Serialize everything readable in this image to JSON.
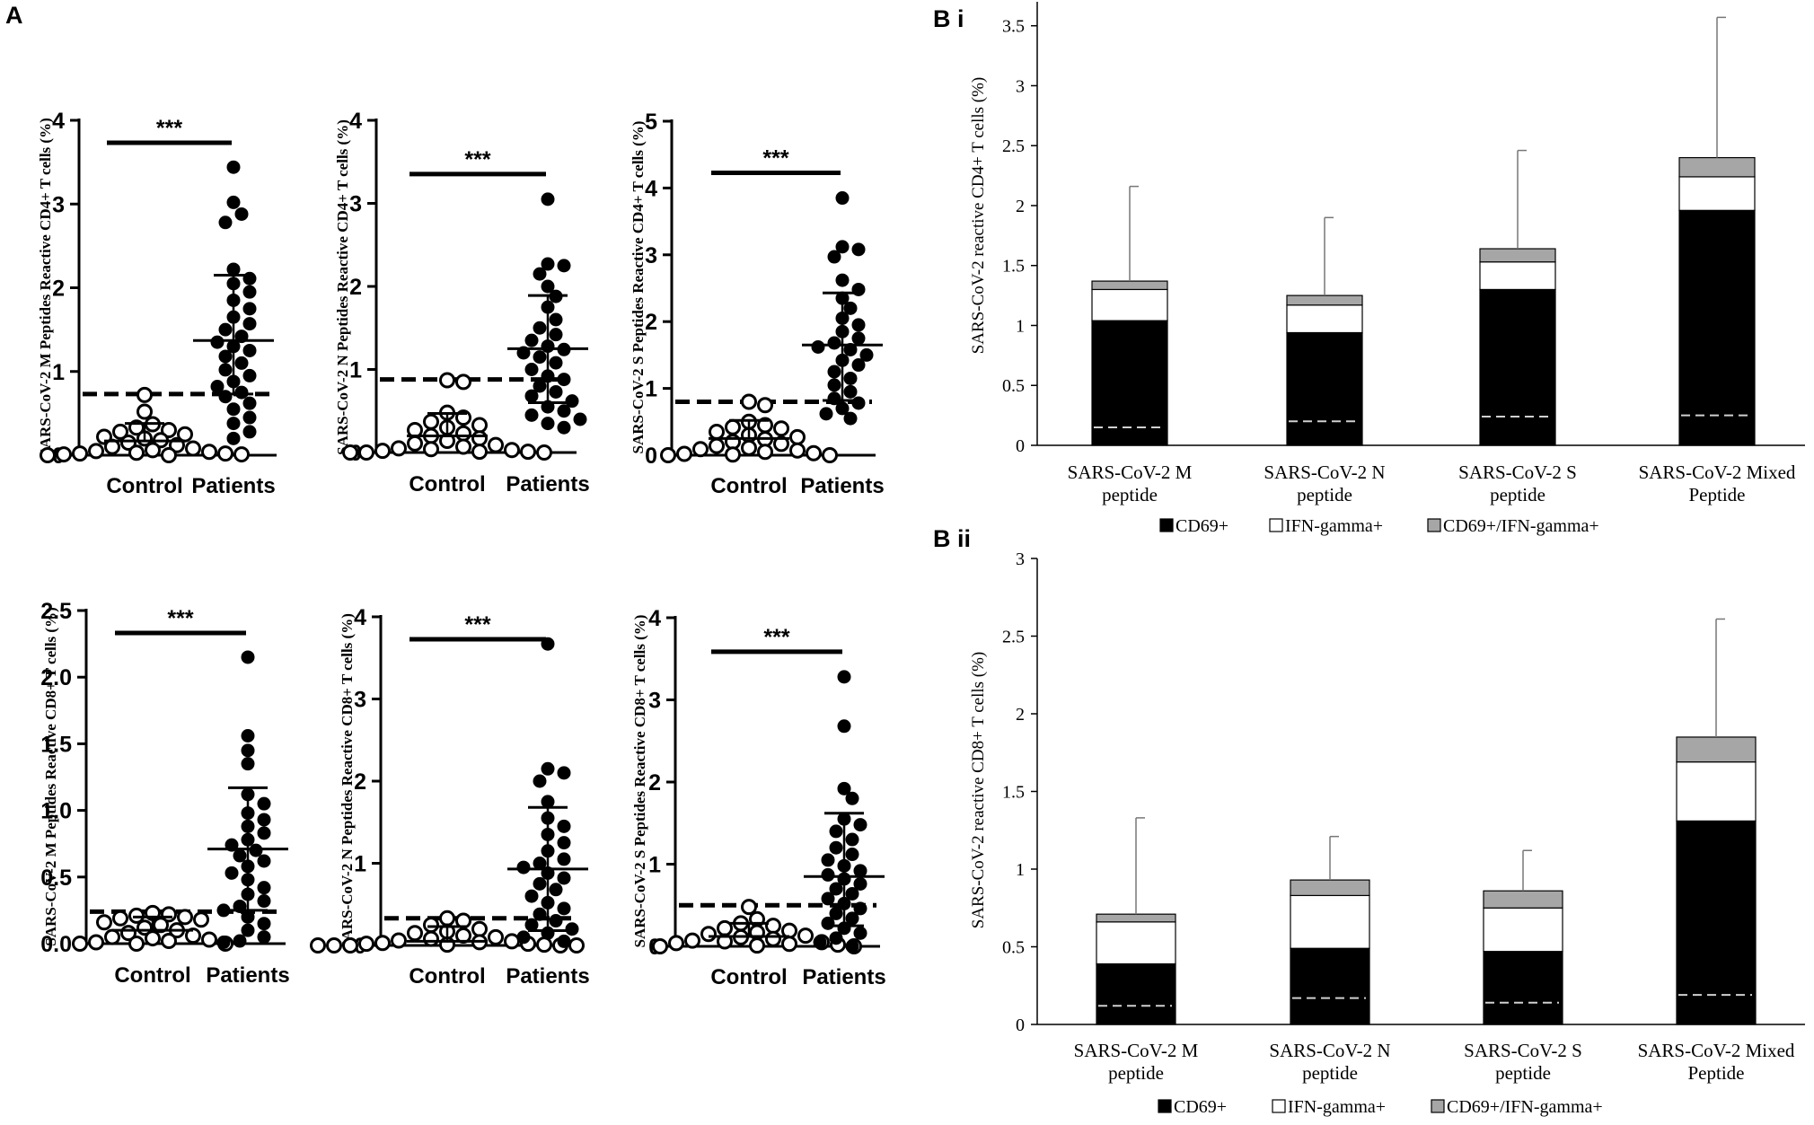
{
  "panel_labels": {
    "a": "A",
    "bi": "B i",
    "bii": "B ii"
  },
  "significance": "***",
  "chart_data": [
    {
      "id": "A1",
      "type": "scatter",
      "ylabel": "SARS-CoV-2 M Peptides Reactive CD4+ T cells (%)",
      "categories": [
        "Control",
        "Patients"
      ],
      "ylim": [
        0,
        4
      ],
      "yticks": [
        0,
        1,
        2,
        3,
        4
      ],
      "ytick_labels": [
        "0",
        "1",
        "2",
        "3",
        "4"
      ],
      "cutoff": 0.73,
      "significance": "***",
      "control": {
        "mean": 0.17,
        "sd_upper": 0.38,
        "values": [
          0.72,
          0.52,
          0.37,
          0.33,
          0.3,
          0.28,
          0.25,
          0.22,
          0.2,
          0.18,
          0.15,
          0.12,
          0.1,
          0.08,
          0.06,
          0.05,
          0.04,
          0.03,
          0.02,
          0.02,
          0.01,
          0.01,
          0.0,
          0.0
        ]
      },
      "patients": {
        "mean": 1.37,
        "sd_upper": 2.15,
        "sd_lower": 0.73,
        "values": [
          3.44,
          3.02,
          2.88,
          2.78,
          2.22,
          2.11,
          2.05,
          1.95,
          1.85,
          1.75,
          1.65,
          1.57,
          1.5,
          1.42,
          1.35,
          1.3,
          1.25,
          1.18,
          1.1,
          1.02,
          0.95,
          0.88,
          0.82,
          0.75,
          0.7,
          0.62,
          0.55,
          0.45,
          0.38,
          0.28,
          0.2
        ]
      }
    },
    {
      "id": "A2",
      "type": "scatter",
      "ylabel": "SARS-CoV-2 N Peptides Reactive CD4+ T cells (%)",
      "categories": [
        "Control",
        "Patients"
      ],
      "ylim": [
        0,
        4
      ],
      "yticks": [
        0,
        1,
        2,
        3,
        4
      ],
      "ytick_labels": [
        "0",
        "1",
        "2",
        "3",
        "4"
      ],
      "cutoff": 0.88,
      "significance": "***",
      "control": {
        "mean": 0.2,
        "sd_upper": 0.47,
        "values": [
          0.87,
          0.85,
          0.48,
          0.42,
          0.37,
          0.33,
          0.3,
          0.27,
          0.23,
          0.2,
          0.17,
          0.14,
          0.11,
          0.09,
          0.07,
          0.05,
          0.04,
          0.03,
          0.02,
          0.01,
          0.01,
          0.0,
          0.0,
          0.0
        ]
      },
      "patients": {
        "mean": 1.25,
        "sd_upper": 1.89,
        "sd_lower": 0.6,
        "values": [
          3.05,
          2.27,
          2.25,
          2.15,
          2.0,
          1.88,
          1.75,
          1.6,
          1.5,
          1.42,
          1.35,
          1.28,
          1.24,
          1.2,
          1.15,
          1.08,
          1.0,
          0.92,
          0.88,
          0.8,
          0.73,
          0.68,
          0.62,
          0.55,
          0.5,
          0.45,
          0.4,
          0.35,
          0.3
        ]
      }
    },
    {
      "id": "A3",
      "type": "scatter",
      "ylabel": "SARS-CoV-2 S Peptides Reactive CD4+ T cells (%)",
      "categories": [
        "Control",
        "Patients"
      ],
      "ylim": [
        0,
        5
      ],
      "yticks": [
        0,
        1,
        2,
        3,
        4,
        5
      ],
      "ytick_labels": [
        "0",
        "1",
        "2",
        "3",
        "4",
        "5"
      ],
      "cutoff": 0.8,
      "significance": "***",
      "control": {
        "mean": 0.25,
        "sd_upper": 0.52,
        "values": [
          0.8,
          0.75,
          0.5,
          0.45,
          0.42,
          0.4,
          0.35,
          0.3,
          0.27,
          0.24,
          0.2,
          0.17,
          0.14,
          0.11,
          0.09,
          0.07,
          0.05,
          0.03,
          0.02,
          0.01,
          0.0,
          0.0
        ]
      },
      "patients": {
        "mean": 1.65,
        "sd_upper": 2.43,
        "sd_lower": 0.82,
        "values": [
          3.85,
          3.12,
          3.08,
          2.97,
          2.62,
          2.48,
          2.35,
          2.2,
          2.05,
          1.95,
          1.85,
          1.75,
          1.68,
          1.62,
          1.58,
          1.5,
          1.42,
          1.35,
          1.25,
          1.15,
          1.05,
          0.95,
          0.85,
          0.78,
          0.7,
          0.62,
          0.55
        ]
      }
    },
    {
      "id": "A4",
      "type": "scatter",
      "ylabel": "SARS-CoV-2 M Peptides Reactive CD8+ T cells (%)",
      "categories": [
        "Control",
        "Patients"
      ],
      "ylim": [
        0,
        2.5
      ],
      "yticks": [
        0,
        0.5,
        1.0,
        1.5,
        2.0,
        2.5
      ],
      "ytick_labels": [
        "0.0",
        "0.5",
        "1.0",
        "1.5",
        "2.0",
        "2.5"
      ],
      "cutoff": 0.24,
      "significance": "***",
      "control": {
        "mean": 0.1,
        "sd_upper": 0.2,
        "values": [
          0.23,
          0.22,
          0.21,
          0.2,
          0.19,
          0.18,
          0.16,
          0.14,
          0.12,
          0.1,
          0.08,
          0.06,
          0.05,
          0.04,
          0.03,
          0.02,
          0.01,
          0.0,
          0.0,
          0.0
        ]
      },
      "patients": {
        "mean": 0.71,
        "sd_upper": 1.17,
        "sd_lower": 0.25,
        "values": [
          2.15,
          1.56,
          1.45,
          1.35,
          1.12,
          1.05,
          0.98,
          0.93,
          0.88,
          0.83,
          0.78,
          0.74,
          0.7,
          0.66,
          0.62,
          0.58,
          0.53,
          0.48,
          0.42,
          0.37,
          0.32,
          0.28,
          0.25,
          0.2,
          0.15,
          0.1,
          0.05,
          0.02,
          0.01
        ]
      }
    },
    {
      "id": "A5",
      "type": "scatter",
      "ylabel": "SARS-CoV-2 N Peptides Reactive CD8+ T cells (%)",
      "categories": [
        "Control",
        "Patients"
      ],
      "ylim": [
        0,
        4
      ],
      "yticks": [
        0,
        1,
        2,
        3,
        4
      ],
      "ytick_labels": [
        "0",
        "1",
        "2",
        "3",
        "4"
      ],
      "cutoff": 0.33,
      "significance": "***",
      "control": {
        "mean": 0.05,
        "sd_upper": 0.23,
        "values": [
          0.33,
          0.3,
          0.25,
          0.2,
          0.17,
          0.15,
          0.12,
          0.1,
          0.08,
          0.06,
          0.05,
          0.04,
          0.03,
          0.02,
          0.02,
          0.01,
          0.01,
          0.0,
          0.0,
          0.0,
          0.0,
          0.0
        ]
      },
      "patients": {
        "mean": 0.93,
        "sd_upper": 1.68,
        "sd_lower": 0.18,
        "values": [
          3.67,
          2.15,
          2.1,
          2.0,
          1.75,
          1.55,
          1.45,
          1.35,
          1.25,
          1.15,
          1.05,
          1.0,
          0.95,
          0.88,
          0.82,
          0.75,
          0.68,
          0.6,
          0.52,
          0.45,
          0.38,
          0.3,
          0.25,
          0.2,
          0.15,
          0.1,
          0.05
        ]
      }
    },
    {
      "id": "A6",
      "type": "scatter",
      "ylabel": "SARS-CoV-2 S Peptides Reactive CD8+ T cells (%)",
      "categories": [
        "Control",
        "Patients"
      ],
      "ylim": [
        0,
        4
      ],
      "yticks": [
        0,
        1,
        2,
        3,
        4
      ],
      "ytick_labels": [
        "0",
        "1",
        "2",
        "3",
        "4"
      ],
      "cutoff": 0.5,
      "significance": "***",
      "control": {
        "mean": 0.12,
        "sd_upper": 0.28,
        "values": [
          0.48,
          0.33,
          0.28,
          0.25,
          0.22,
          0.19,
          0.17,
          0.15,
          0.13,
          0.11,
          0.09,
          0.07,
          0.06,
          0.05,
          0.04,
          0.03,
          0.02,
          0.01,
          0.0,
          0.0
        ]
      },
      "patients": {
        "mean": 0.85,
        "sd_upper": 1.62,
        "sd_lower": 0.25,
        "values": [
          3.28,
          2.68,
          1.92,
          1.8,
          1.55,
          1.48,
          1.4,
          1.3,
          1.2,
          1.12,
          1.05,
          0.98,
          0.92,
          0.87,
          0.82,
          0.76,
          0.7,
          0.64,
          0.58,
          0.52,
          0.46,
          0.4,
          0.34,
          0.28,
          0.22,
          0.16,
          0.1,
          0.05,
          0.0
        ]
      }
    },
    {
      "id": "Bi",
      "type": "bar",
      "stacked": true,
      "ylabel": "SARS-CoV-2 reactive CD4+ T cells (%)",
      "categories": [
        [
          "SARS-CoV-2 M",
          "peptide"
        ],
        [
          "SARS-CoV-2 N",
          "peptide"
        ],
        [
          "SARS-CoV-2 S",
          "peptide"
        ],
        [
          "SARS-CoV-2 Mixed",
          "Peptide"
        ]
      ],
      "ylim": [
        0,
        3.7
      ],
      "yticks": [
        0,
        0.5,
        1,
        1.5,
        2,
        2.5,
        3,
        3.5
      ],
      "ytick_labels": [
        "0",
        "0.5",
        "1",
        "1.5",
        "2",
        "2.5",
        "3",
        "3.5"
      ],
      "series": [
        {
          "name": "CD69+",
          "color": "#000000",
          "values": [
            1.04,
            0.94,
            1.3,
            1.96
          ]
        },
        {
          "name": "IFN-gamma+",
          "color": "#ffffff",
          "values": [
            0.26,
            0.23,
            0.23,
            0.28
          ]
        },
        {
          "name": "CD69+/IFN-gamma+",
          "color": "#a6a6a6",
          "values": [
            0.07,
            0.08,
            0.11,
            0.16
          ]
        }
      ],
      "error_top": [
        2.16,
        1.9,
        2.46,
        3.57
      ],
      "cutoff_lines": [
        0.15,
        0.2,
        0.24,
        0.25
      ]
    },
    {
      "id": "Bii",
      "type": "bar",
      "stacked": true,
      "ylabel": "SARS-CoV-2 reactive CD8+ T cells (%)",
      "categories": [
        [
          "SARS-CoV-2 M",
          "peptide"
        ],
        [
          "SARS-CoV-2 N",
          "peptide"
        ],
        [
          "SARS-CoV-2 S",
          "peptide"
        ],
        [
          "SARS-CoV-2 Mixed",
          "Peptide"
        ]
      ],
      "ylim": [
        0,
        3
      ],
      "yticks": [
        0,
        0.5,
        1,
        1.5,
        2,
        2.5,
        3
      ],
      "ytick_labels": [
        "0",
        "0.5",
        "1",
        "1.5",
        "2",
        "2.5",
        "3"
      ],
      "series": [
        {
          "name": "CD69+",
          "color": "#000000",
          "values": [
            0.39,
            0.49,
            0.47,
            1.31
          ]
        },
        {
          "name": "IFN-gamma+",
          "color": "#ffffff",
          "values": [
            0.27,
            0.34,
            0.28,
            0.38
          ]
        },
        {
          "name": "CD69+/IFN-gamma+",
          "color": "#a6a6a6",
          "values": [
            0.05,
            0.1,
            0.11,
            0.16
          ]
        }
      ],
      "error_top": [
        1.33,
        1.21,
        1.12,
        2.61
      ],
      "cutoff_lines": [
        0.12,
        0.17,
        0.14,
        0.19
      ]
    }
  ]
}
